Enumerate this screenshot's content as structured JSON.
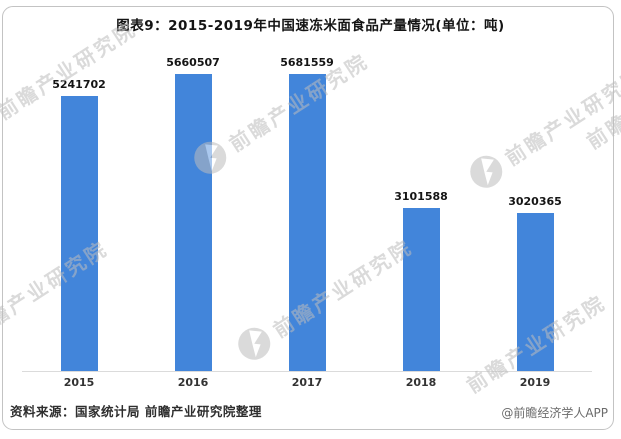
{
  "card": {
    "title": "图表9：2015-2019年中国速冻米面食品产量情况(单位：吨)",
    "source_note": "资料来源：国家统计局 前瞻产业研究院整理",
    "credit": "@前瞻经济学人APP"
  },
  "watermark": {
    "text": "前瞻产业研究院",
    "logo": "flag-circle-icon",
    "color": "#bdbdbd"
  },
  "chart_data": {
    "type": "bar",
    "title": "图表9：2015-2019年中国速冻米面食品产量情况(单位：吨)",
    "unit": "吨",
    "categories": [
      "2015",
      "2016",
      "2017",
      "2018",
      "2019"
    ],
    "values": [
      5241702,
      5660507,
      5681559,
      3101588,
      3020365
    ],
    "series": [
      {
        "name": "中国速冻米面食品产量(吨)",
        "values": [
          5241702,
          5660507,
          5681559,
          3101588,
          3020365
        ]
      }
    ],
    "bar_color": "#4285DA",
    "ylim": [
      0,
      5681559
    ],
    "xlabel": "",
    "ylabel": "",
    "grid": false,
    "legend": "none",
    "data_labels": true,
    "axis_line_color": "#dbdbdb"
  }
}
